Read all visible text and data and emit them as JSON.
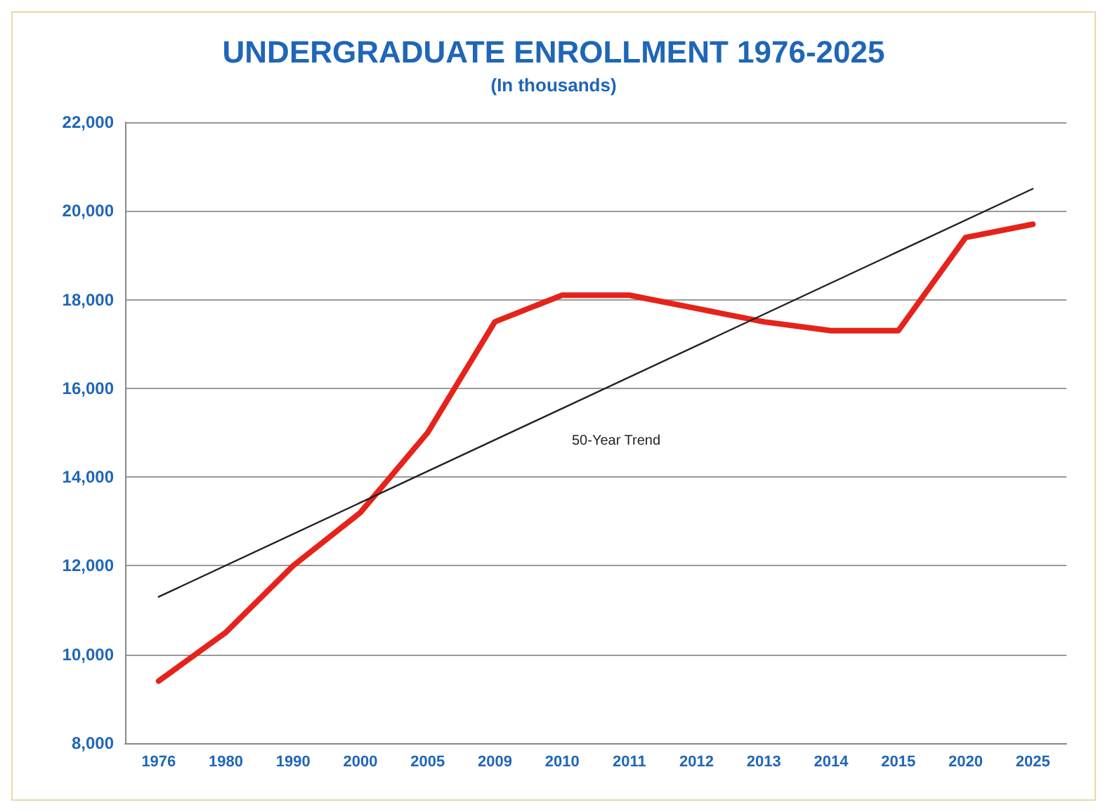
{
  "chart_data": {
    "type": "line",
    "title": "UNDERGRADUATE ENROLLMENT 1976-2025",
    "subtitle": "(In thousands)",
    "categories": [
      "1976",
      "1980",
      "1990",
      "2000",
      "2005",
      "2009",
      "2010",
      "2011",
      "2012",
      "2013",
      "2014",
      "2015",
      "2020",
      "2025"
    ],
    "series": [
      {
        "color": "#e5231b",
        "values": [
          9400,
          10500,
          12000,
          13200,
          15000,
          17500,
          18100,
          18100,
          17800,
          17500,
          17300,
          17300,
          19400,
          19700
        ]
      },
      {
        "type": "line",
        "color": "#222222",
        "values": [
          11300,
          null,
          null,
          null,
          null,
          null,
          null,
          null,
          null,
          null,
          null,
          null,
          null,
          20500
        ]
      }
    ],
    "ylim": [
      8000,
      22000
    ],
    "yticks": [
      {
        "value": 8000,
        "label": "8,000"
      },
      {
        "value": 10000,
        "label": "10,000"
      },
      {
        "value": 12000,
        "label": "12,000"
      },
      {
        "value": 14000,
        "label": "14,000"
      },
      {
        "value": 16000,
        "label": "16,000"
      },
      {
        "value": 18000,
        "label": "18,000"
      },
      {
        "value": 20000,
        "label": "20,000"
      },
      {
        "value": 22000,
        "label": "22,000"
      }
    ],
    "annotations": [
      "50-Year Trend"
    ],
    "grid": "y",
    "marker": "none",
    "line_style": "solid"
  }
}
